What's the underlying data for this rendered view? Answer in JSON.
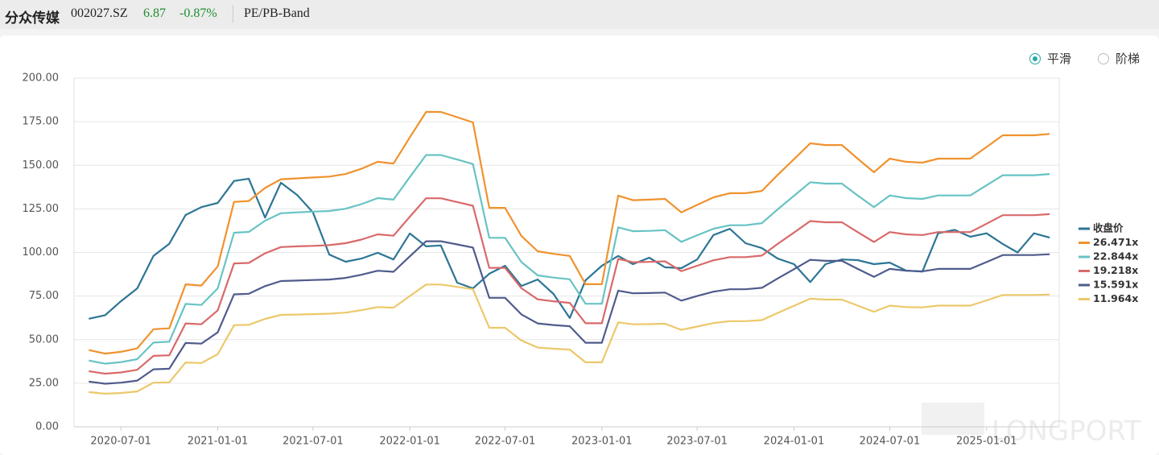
{
  "header": {
    "name": "分众传媒",
    "code": "002027.SZ",
    "price": "6.87",
    "change": "-0.87%",
    "tab": "PE/PB-Band"
  },
  "controls": {
    "options": [
      "平滑",
      "阶梯"
    ],
    "selected": 0
  },
  "watermark": "LONGPORT",
  "chart_data": {
    "type": "line",
    "x": [
      "2020-05-01",
      "2020-06-01",
      "2020-07-01",
      "2020-08-01",
      "2020-09-01",
      "2020-10-01",
      "2020-11-01",
      "2020-12-01",
      "2021-01-01",
      "2021-02-01",
      "2021-03-01",
      "2021-04-01",
      "2021-05-01",
      "2021-06-01",
      "2021-07-01",
      "2021-08-01",
      "2021-09-01",
      "2021-10-01",
      "2021-11-01",
      "2021-12-01",
      "2022-01-01",
      "2022-02-01",
      "2022-03-01",
      "2022-04-01",
      "2022-05-01",
      "2022-06-01",
      "2022-07-01",
      "2022-08-01",
      "2022-09-01",
      "2022-10-01",
      "2022-11-01",
      "2022-12-01",
      "2023-01-01",
      "2023-02-01",
      "2023-03-01",
      "2023-04-01",
      "2023-05-01",
      "2023-06-01",
      "2023-07-01",
      "2023-08-01",
      "2023-09-01",
      "2023-10-01",
      "2023-11-01",
      "2023-12-01",
      "2024-01-01",
      "2024-02-01",
      "2024-03-01",
      "2024-04-01",
      "2024-05-01",
      "2024-06-01",
      "2024-07-01",
      "2024-08-01",
      "2024-09-01",
      "2024-10-01",
      "2024-11-01",
      "2024-12-01",
      "2025-01-01",
      "2025-02-01",
      "2025-03-01",
      "2025-04-01",
      "2025-05-01"
    ],
    "series": [
      {
        "name": "收盘价",
        "color": "#2d7595",
        "values": [
          62,
          64,
          72,
          79.4,
          98,
          105,
          121.5,
          126,
          128.4,
          141,
          142.3,
          120,
          140,
          133,
          123,
          98.8,
          94.7,
          96.5,
          99.8,
          96,
          110.9,
          103.5,
          104,
          82.7,
          79.4,
          87.8,
          92.4,
          80.8,
          84.5,
          76.2,
          62.4,
          84,
          92.4,
          98,
          93.3,
          97,
          91.5,
          91,
          96,
          110,
          113.6,
          105.3,
          102.5,
          96.5,
          93.3,
          83,
          93.3,
          96,
          95.6,
          93.3,
          94.2,
          89.6,
          89,
          111,
          113,
          109,
          111,
          104.8,
          100,
          111,
          108.5
        ]
      },
      {
        "name": "26.471x",
        "color": "#f0922e",
        "values": [
          44,
          42,
          43,
          45,
          56,
          56.5,
          81.7,
          81,
          92,
          129,
          129.5,
          137,
          142,
          142.5,
          143,
          143.5,
          145,
          148,
          152,
          151,
          166,
          180.6,
          180.6,
          177.6,
          174.6,
          125.6,
          125.6,
          109.5,
          100.7,
          99.2,
          98,
          81.8,
          81.8,
          132.6,
          130,
          130.3,
          130.7,
          123,
          127.3,
          131.6,
          134,
          134,
          135.3,
          144.5,
          153.5,
          162.6,
          161.6,
          161.6,
          153.8,
          146,
          153.8,
          152,
          151.5,
          153.8,
          153.8,
          153.8,
          160.5,
          167.2,
          167.2,
          167.2,
          168
        ]
      },
      {
        "name": "22.844x",
        "color": "#68c3c4",
        "values": [
          38,
          36.2,
          37.1,
          38.8,
          48.3,
          48.8,
          70.5,
          69.9,
          79.4,
          111.3,
          111.8,
          118.2,
          122.5,
          123,
          123.4,
          123.8,
          125.1,
          127.7,
          131.2,
          130.3,
          143.3,
          155.9,
          155.9,
          153.3,
          150.7,
          108.4,
          108.4,
          94.5,
          86.9,
          85.6,
          84.6,
          70.6,
          70.6,
          114.4,
          112.2,
          112.4,
          112.8,
          106.1,
          109.9,
          113.6,
          115.6,
          115.6,
          116.8,
          124.7,
          132.5,
          140.3,
          139.5,
          139.5,
          132.7,
          126,
          132.7,
          131.2,
          130.7,
          132.7,
          132.7,
          132.7,
          138.5,
          144.3,
          144.3,
          144.3,
          145
        ]
      },
      {
        "name": "19.218x",
        "color": "#d9696a",
        "values": [
          31.9,
          30.5,
          31.2,
          32.7,
          40.7,
          41,
          59.3,
          58.8,
          66.8,
          93.7,
          94,
          99.5,
          103.1,
          103.5,
          103.8,
          104.2,
          105.3,
          107.4,
          110.4,
          109.6,
          120.5,
          131.1,
          131.1,
          128.9,
          126.8,
          91.2,
          91.2,
          79.5,
          73.1,
          72,
          71.1,
          59.4,
          59.4,
          96.3,
          94.4,
          94.6,
          94.9,
          89.3,
          92.4,
          95.5,
          97.3,
          97.3,
          98.2,
          104.9,
          111.4,
          118,
          117.3,
          117.3,
          111.7,
          106,
          111.7,
          110.4,
          110,
          111.7,
          111.7,
          111.7,
          116.5,
          121.4,
          121.4,
          121.4,
          122
        ]
      },
      {
        "name": "15.591x",
        "color": "#4f5b8c",
        "values": [
          25.9,
          24.7,
          25.3,
          26.5,
          33,
          33.3,
          48.1,
          47.7,
          54.2,
          76,
          76.3,
          80.7,
          83.6,
          83.9,
          84.2,
          84.5,
          85.4,
          87.2,
          89.5,
          88.9,
          97.8,
          106.4,
          106.4,
          104.6,
          102.8,
          74,
          74,
          64.5,
          59.3,
          58.4,
          57.7,
          48.2,
          48.2,
          78.1,
          76.6,
          76.7,
          77,
          72.4,
          75,
          77.5,
          78.9,
          78.9,
          79.7,
          85.1,
          90.4,
          95.8,
          95.2,
          95.2,
          90.6,
          86,
          90.6,
          89.5,
          89.2,
          90.6,
          90.6,
          90.6,
          94.5,
          98.5,
          98.5,
          98.5,
          99
        ]
      },
      {
        "name": "11.964x",
        "color": "#ecc86a",
        "values": [
          19.9,
          19,
          19.4,
          20.3,
          25.3,
          25.5,
          36.9,
          36.6,
          41.6,
          58.3,
          58.5,
          61.9,
          64.2,
          64.4,
          64.6,
          64.9,
          65.5,
          66.9,
          68.7,
          68.3,
          75,
          81.6,
          81.6,
          80.3,
          78.9,
          56.8,
          56.8,
          49.5,
          45.5,
          44.8,
          44.3,
          37,
          37,
          59.9,
          58.8,
          58.9,
          59.1,
          55.6,
          57.5,
          59.5,
          60.6,
          60.6,
          61.2,
          65.3,
          69.4,
          73.5,
          73,
          73,
          69.5,
          66,
          69.5,
          68.7,
          68.5,
          69.5,
          69.5,
          69.5,
          72.5,
          75.6,
          75.6,
          75.6,
          75.9
        ]
      }
    ],
    "xlim": [
      "2020-04-03",
      "2025-05-19"
    ],
    "xticks": [
      "2020-07-01",
      "2021-01-01",
      "2021-07-01",
      "2022-01-01",
      "2022-07-01",
      "2023-01-01",
      "2023-07-01",
      "2024-01-01",
      "2024-07-01",
      "2025-01-01"
    ],
    "ylim": [
      0,
      200
    ],
    "yticks": [
      {
        "value": 0,
        "label": "0.00"
      },
      {
        "value": 25,
        "label": "25.00"
      },
      {
        "value": 50,
        "label": "50.00"
      },
      {
        "value": 75,
        "label": "75.00"
      },
      {
        "value": 100,
        "label": "100.00"
      },
      {
        "value": 125,
        "label": "125.00"
      },
      {
        "value": 150,
        "label": "150.00"
      },
      {
        "value": 175,
        "label": "175.00"
      },
      {
        "value": 200,
        "label": "200.00"
      }
    ],
    "grid": true,
    "legend": "right"
  }
}
